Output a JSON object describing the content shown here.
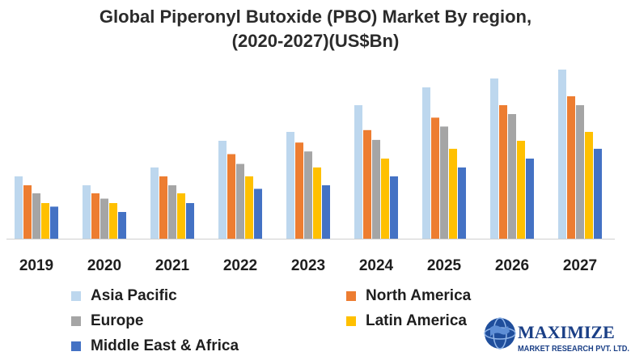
{
  "chart_data": {
    "type": "bar",
    "title": "Global Piperonyl Butoxide (PBO) Market By region,",
    "subtitle": "(2020-2027)(US$Bn)",
    "categories": [
      "2019",
      "2020",
      "2021",
      "2022",
      "2023",
      "2024",
      "2025",
      "2026",
      "2027"
    ],
    "series": [
      {
        "name": "Asia Pacific",
        "color": "#bdd7ee",
        "values": [
          7.0,
          6.0,
          8.0,
          11.0,
          12.0,
          15.0,
          17.0,
          18.0,
          19.0
        ]
      },
      {
        "name": "North America",
        "color": "#ed7d31",
        "values": [
          6.0,
          5.1,
          7.0,
          9.5,
          10.8,
          12.2,
          13.6,
          15.0,
          16.0
        ]
      },
      {
        "name": "Europe",
        "color": "#a5a5a5",
        "values": [
          5.1,
          4.5,
          6.0,
          8.4,
          9.8,
          11.1,
          12.6,
          14.0,
          15.0
        ]
      },
      {
        "name": "Latin America",
        "color": "#ffc000",
        "values": [
          4.0,
          4.0,
          5.1,
          7.0,
          8.0,
          9.0,
          10.1,
          11.0,
          12.0
        ]
      },
      {
        "name": "Middle East & Africa",
        "color": "#4472c4",
        "values": [
          3.6,
          3.0,
          4.0,
          5.6,
          6.0,
          7.0,
          8.0,
          9.0,
          10.1
        ]
      }
    ],
    "ylim": [
      0,
      20
    ],
    "grid": false,
    "legend": "bottom"
  },
  "logo": {
    "name": "MAXIMIZE",
    "tagline": "MARKET RESEARCH PVT. LTD."
  }
}
